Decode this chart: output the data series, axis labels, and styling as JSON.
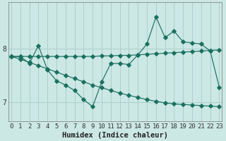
{
  "xlabel": "Humidex (Indice chaleur)",
  "bg_color": "#cce8e4",
  "grid_color": "#aacfca",
  "line_color": "#1a7060",
  "x_ticks": [
    0,
    1,
    2,
    3,
    4,
    5,
    6,
    7,
    8,
    9,
    10,
    11,
    12,
    13,
    14,
    15,
    16,
    17,
    18,
    19,
    20,
    21,
    22,
    23
  ],
  "y_ticks": [
    7,
    8
  ],
  "ylim": [
    6.65,
    8.85
  ],
  "xlim": [
    -0.3,
    23.3
  ],
  "line1_x": [
    0,
    1,
    2,
    3,
    4,
    5,
    6,
    7,
    8,
    9,
    10,
    11,
    12,
    13,
    14,
    15,
    16,
    17,
    18,
    19,
    20,
    21,
    22,
    23
  ],
  "line1_y": [
    7.85,
    7.85,
    7.72,
    8.05,
    7.6,
    7.4,
    7.32,
    7.22,
    7.05,
    6.92,
    7.38,
    7.72,
    7.72,
    7.7,
    7.88,
    8.08,
    8.58,
    8.2,
    8.32,
    8.12,
    8.1,
    8.08,
    7.95,
    7.28
  ],
  "line2_x": [
    0,
    1,
    2,
    3,
    4,
    5,
    6,
    7,
    8,
    9,
    10,
    11,
    12,
    13,
    14,
    15,
    16,
    17,
    18,
    19,
    20,
    21,
    22,
    23
  ],
  "line2_y": [
    7.85,
    7.8,
    7.74,
    7.68,
    7.62,
    7.56,
    7.5,
    7.44,
    7.38,
    7.32,
    7.27,
    7.22,
    7.17,
    7.13,
    7.09,
    7.05,
    7.02,
    6.99,
    6.97,
    6.96,
    6.95,
    6.94,
    6.93,
    6.92
  ],
  "line3_x": [
    0,
    1,
    2,
    3,
    4,
    5,
    6,
    7,
    8,
    9,
    10,
    11,
    12,
    13,
    14,
    15,
    16,
    17,
    18,
    19,
    20,
    21,
    22,
    23
  ],
  "line3_y": [
    7.85,
    7.85,
    7.85,
    7.85,
    7.85,
    7.85,
    7.85,
    7.85,
    7.85,
    7.85,
    7.86,
    7.86,
    7.87,
    7.87,
    7.88,
    7.89,
    7.9,
    7.91,
    7.92,
    7.93,
    7.94,
    7.95,
    7.96,
    7.97
  ],
  "tick_fontsize": 6.5,
  "label_fontsize": 7.5
}
